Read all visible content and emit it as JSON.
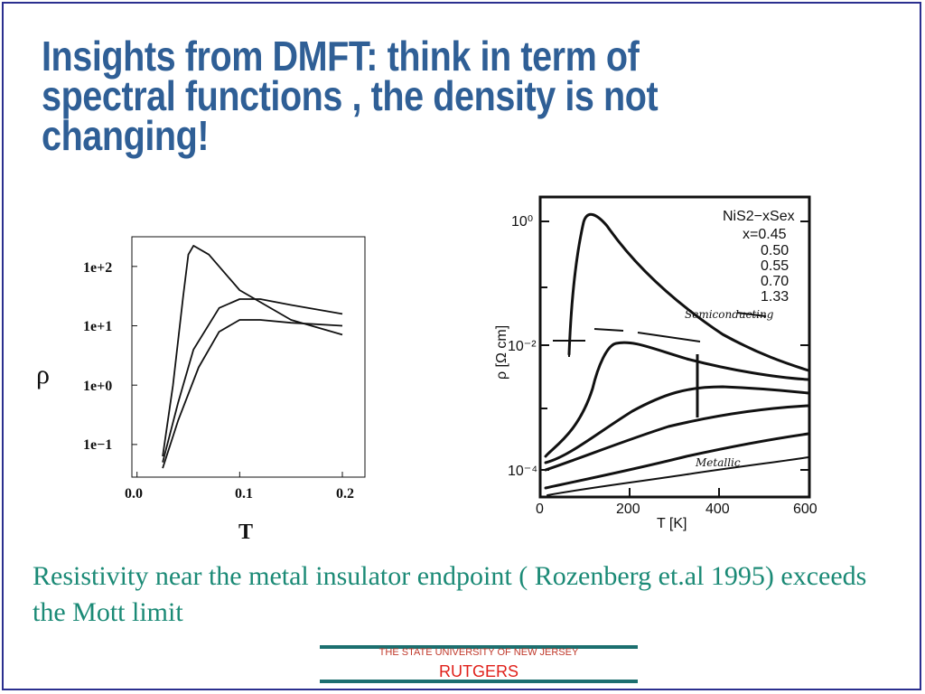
{
  "slide": {
    "title": "Insights from DMFT: think in term of spectral functions , the density is not changing!",
    "caption": "Resistivity near the metal insulator endpoint ( Rozenberg et.al 1995) exceeds the Mott limit",
    "footer": {
      "university": "THE STATE UNIVERSITY OF NEW JERSEY",
      "name": "RUTGERS"
    }
  },
  "colors": {
    "title": "#2f5f96",
    "caption": "#1b8a76",
    "footer_text": "#e0201a",
    "footer_rule": "#1b6f6f",
    "frame": "#2b2f8f"
  },
  "chart_data": [
    {
      "type": "line",
      "ylabel": "ρ",
      "xlabel": "T",
      "x_ticks": [
        "0.0",
        "0.1",
        "0.2"
      ],
      "y_ticks": [
        "1e+2",
        "1e+1",
        "1e+0",
        "1e−1"
      ],
      "xlim": [
        -0.005,
        0.222
      ],
      "ylim_log10": [
        -1.55,
        2.5
      ],
      "series": [
        {
          "x": [
            0.025,
            0.035,
            0.045,
            0.05,
            0.055,
            0.07,
            0.1,
            0.15,
            0.2
          ],
          "log10_y": [
            -1.2,
            0.0,
            1.5,
            2.2,
            2.35,
            2.2,
            1.6,
            1.1,
            0.85
          ]
        },
        {
          "x": [
            0.025,
            0.04,
            0.055,
            0.08,
            0.1,
            0.12,
            0.15,
            0.2
          ],
          "log10_y": [
            -1.3,
            -0.3,
            0.6,
            1.3,
            1.45,
            1.45,
            1.35,
            1.2
          ]
        },
        {
          "x": [
            0.025,
            0.04,
            0.06,
            0.08,
            0.1,
            0.12,
            0.15,
            0.2
          ],
          "log10_y": [
            -1.4,
            -0.6,
            0.3,
            0.9,
            1.1,
            1.1,
            1.05,
            1.0
          ]
        }
      ]
    },
    {
      "type": "line",
      "ylabel": "ρ [Ω cm]",
      "xlabel": "T [K]",
      "x_ticks": [
        "0",
        "200",
        "400",
        "600"
      ],
      "y_ticks": [
        "10⁰",
        "10⁻²",
        "10⁻⁴"
      ],
      "xlim": [
        0,
        600
      ],
      "legend_title": "NiS2−xSex",
      "legend_entries": [
        "x=0.45",
        "0.50",
        "0.55",
        "0.70",
        "1.33"
      ],
      "annotations": [
        "Semiconducting",
        "Metallic"
      ]
    }
  ]
}
